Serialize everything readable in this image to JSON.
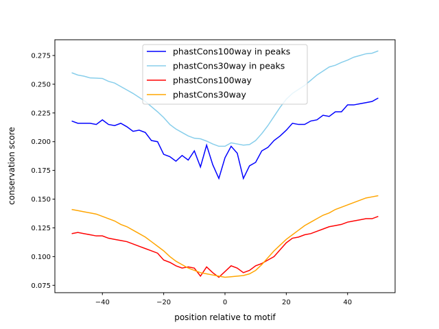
{
  "chart_data": {
    "type": "line",
    "title": "",
    "xlabel": "position relative to motif",
    "ylabel": "conservation score",
    "xlim": [
      -55.5,
      55.5
    ],
    "ylim": [
      0.0686,
      0.2887
    ],
    "xticks": [
      -40,
      -20,
      0,
      20,
      40
    ],
    "xtick_labels": [
      "−40",
      "−20",
      "0",
      "20",
      "40"
    ],
    "yticks": [
      0.075,
      0.1,
      0.125,
      0.15,
      0.175,
      0.2,
      0.225,
      0.25,
      0.275
    ],
    "ytick_labels": [
      "0.075",
      "0.100",
      "0.125",
      "0.150",
      "0.175",
      "0.200",
      "0.225",
      "0.250",
      "0.275"
    ],
    "legend_position": "top-center",
    "x": [
      -50,
      -48,
      -46,
      -44,
      -42,
      -40,
      -38,
      -36,
      -34,
      -32,
      -30,
      -28,
      -26,
      -24,
      -22,
      -20,
      -18,
      -16,
      -14,
      -12,
      -10,
      -8,
      -6,
      -4,
      -2,
      0,
      2,
      4,
      6,
      8,
      10,
      12,
      14,
      16,
      18,
      20,
      22,
      24,
      26,
      28,
      30,
      32,
      34,
      36,
      38,
      40,
      42,
      44,
      46,
      48,
      50
    ],
    "series": [
      {
        "name": "phastCons100way in peaks",
        "color": "#0000ff",
        "values": [
          0.218,
          0.216,
          0.216,
          0.216,
          0.215,
          0.219,
          0.215,
          0.214,
          0.216,
          0.213,
          0.209,
          0.21,
          0.208,
          0.201,
          0.2,
          0.189,
          0.187,
          0.183,
          0.188,
          0.184,
          0.192,
          0.178,
          0.197,
          0.18,
          0.168,
          0.186,
          0.196,
          0.19,
          0.168,
          0.179,
          0.182,
          0.192,
          0.195,
          0.201,
          0.205,
          0.21,
          0.216,
          0.215,
          0.215,
          0.218,
          0.219,
          0.223,
          0.222,
          0.226,
          0.226,
          0.232,
          0.232,
          0.233,
          0.234,
          0.235,
          0.238
        ]
      },
      {
        "name": "phastCons30way in peaks",
        "color": "#87ceeb",
        "values": [
          0.26,
          0.258,
          0.257,
          0.2555,
          0.2553,
          0.255,
          0.2525,
          0.251,
          0.248,
          0.245,
          0.242,
          0.2385,
          0.235,
          0.2305,
          0.226,
          0.221,
          0.215,
          0.211,
          0.208,
          0.205,
          0.203,
          0.2025,
          0.2005,
          0.198,
          0.196,
          0.196,
          0.199,
          0.198,
          0.197,
          0.1975,
          0.201,
          0.207,
          0.214,
          0.222,
          0.23,
          0.237,
          0.242,
          0.2455,
          0.249,
          0.2535,
          0.258,
          0.2615,
          0.265,
          0.2665,
          0.269,
          0.271,
          0.2735,
          0.275,
          0.2765,
          0.277,
          0.279
        ]
      },
      {
        "name": "phastCons100way",
        "color": "#ff0000",
        "values": [
          0.12,
          0.121,
          0.12,
          0.119,
          0.118,
          0.118,
          0.116,
          0.115,
          0.114,
          0.113,
          0.111,
          0.109,
          0.107,
          0.105,
          0.103,
          0.097,
          0.095,
          0.092,
          0.09,
          0.091,
          0.09,
          0.083,
          0.091,
          0.086,
          0.082,
          0.087,
          0.092,
          0.09,
          0.086,
          0.088,
          0.092,
          0.094,
          0.097,
          0.1,
          0.106,
          0.112,
          0.116,
          0.117,
          0.119,
          0.12,
          0.122,
          0.124,
          0.126,
          0.127,
          0.128,
          0.13,
          0.131,
          0.132,
          0.133,
          0.133,
          0.135
        ]
      },
      {
        "name": "phastCons30way",
        "color": "#ffa500",
        "values": [
          0.141,
          0.14,
          0.139,
          0.138,
          0.137,
          0.135,
          0.133,
          0.131,
          0.128,
          0.126,
          0.123,
          0.12,
          0.117,
          0.113,
          0.109,
          0.105,
          0.1,
          0.096,
          0.093,
          0.09,
          0.088,
          0.086,
          0.085,
          0.084,
          0.083,
          0.082,
          0.0825,
          0.083,
          0.0835,
          0.085,
          0.088,
          0.093,
          0.099,
          0.105,
          0.11,
          0.115,
          0.119,
          0.123,
          0.127,
          0.13,
          0.133,
          0.136,
          0.138,
          0.141,
          0.143,
          0.145,
          0.147,
          0.149,
          0.151,
          0.152,
          0.153
        ]
      }
    ]
  }
}
